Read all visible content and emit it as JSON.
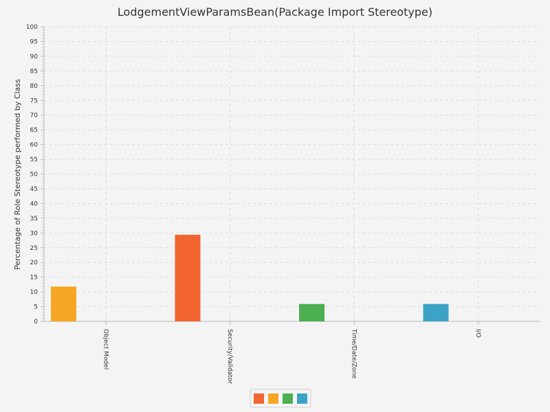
{
  "chart_data": {
    "type": "bar",
    "title": "LodgementViewParamsBean(Package Import Stereotype)",
    "ylabel": "Percentage of Role Stereotype performed by Class",
    "xlabel": "",
    "categories": [
      "Object Model",
      "Security/Validator",
      "Time/Date/Zone",
      "I/O"
    ],
    "series": [
      {
        "color": "#f26430",
        "values": [
          0,
          29.4,
          0,
          0
        ]
      },
      {
        "color": "#f5a623",
        "values": [
          11.8,
          0,
          0,
          0
        ]
      },
      {
        "color": "#4caf50",
        "values": [
          0,
          0,
          5.9,
          0
        ]
      },
      {
        "color": "#3ba3c6",
        "values": [
          0,
          0,
          0,
          5.9
        ]
      }
    ],
    "ylim": [
      0,
      100
    ],
    "yticks": [
      0,
      5,
      10,
      15,
      20,
      25,
      30,
      35,
      40,
      45,
      50,
      55,
      60,
      65,
      70,
      75,
      80,
      85,
      90,
      95,
      100
    ],
    "grid": true,
    "legend_position": "bottom"
  }
}
